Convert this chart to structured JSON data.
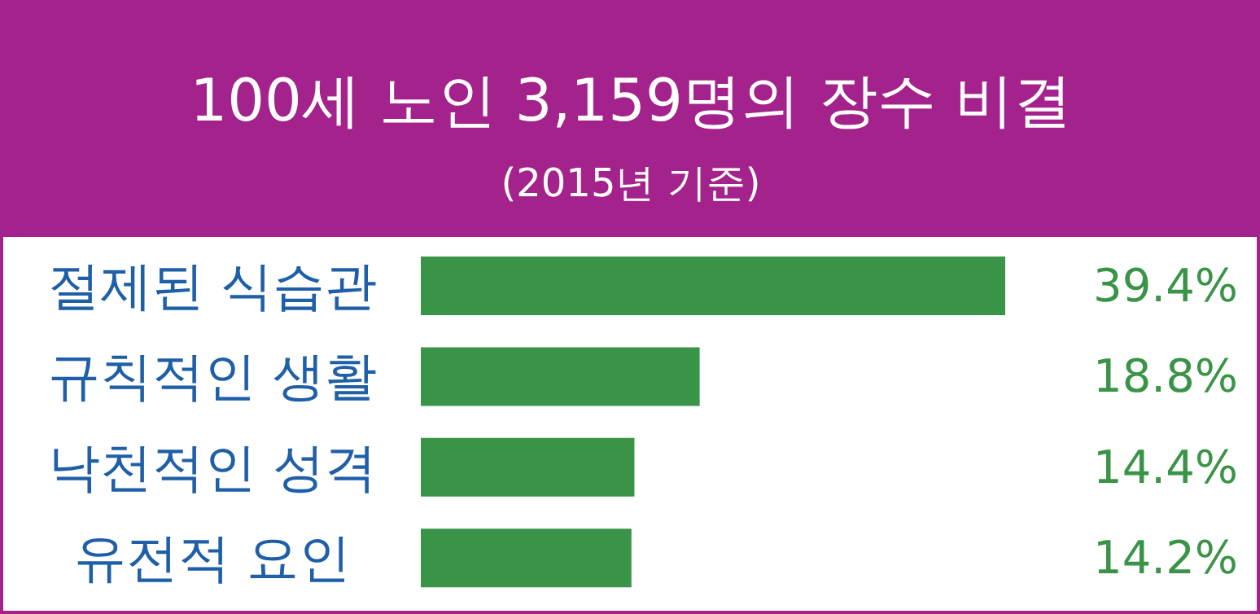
{
  "chart_data": {
    "type": "bar",
    "orientation": "horizontal",
    "title": "100세 노인 3,159명의 장수 비결",
    "subtitle": "(2015년 기준)",
    "categories": [
      "절제된 식습관",
      "규칙적인 생활",
      "낙천적인 성격",
      "유전적 요인"
    ],
    "values": [
      39.4,
      18.8,
      14.4,
      14.2
    ],
    "value_labels": [
      "39.4%",
      "18.8%",
      "14.4%",
      "14.2%"
    ],
    "color": "#3a9448"
  }
}
